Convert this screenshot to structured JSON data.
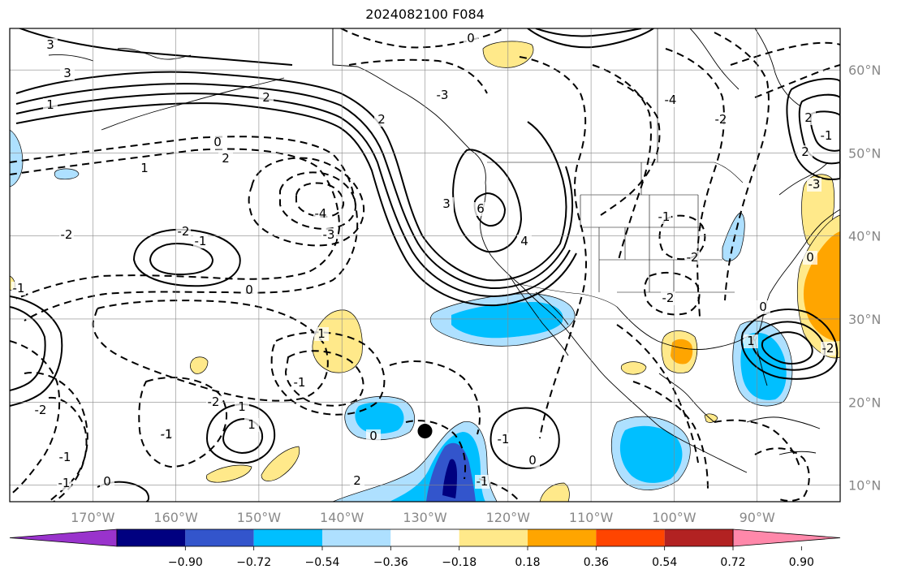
{
  "title": "2024082100 F084",
  "map": {
    "projection": "Plate Carrée",
    "lon_range": [
      -180,
      -80
    ],
    "lat_range": [
      8,
      65
    ],
    "lon_ticks": [
      "170°W",
      "160°W",
      "150°W",
      "140°W",
      "130°W",
      "120°W",
      "110°W",
      "100°W",
      "90°W"
    ],
    "lat_ticks": [
      "60°N",
      "50°N",
      "40°N",
      "30°N",
      "20°N",
      "10°N"
    ],
    "gridlines": true,
    "storm_marker": {
      "lon": -130,
      "lat": 16.5,
      "color": "#000000"
    },
    "contour_labels": [
      "3",
      "3",
      "1",
      "2",
      "2",
      "0",
      "2",
      "1",
      "0",
      "-2",
      "-1",
      "-2",
      "-4",
      "-3",
      "0",
      "-1",
      "3",
      "6",
      "4",
      "-3",
      "-4",
      "-2",
      "-1",
      "-2",
      "-2",
      "0",
      "2",
      "2",
      "0",
      "-1",
      "-2",
      "1",
      "-1",
      "0",
      "1",
      "1",
      "2",
      "-1",
      "-1",
      "0",
      "-1",
      "0",
      "-1",
      "-2",
      "-1",
      "-2",
      "-1",
      "-3",
      "1"
    ]
  },
  "colorbar": {
    "colors": [
      "#9933cc",
      "#000080",
      "#3355cc",
      "#00bfff",
      "#aee0ff",
      "#ffffff",
      "#ffe98a",
      "#ffa500",
      "#ff4500",
      "#b22222",
      "#ff88aa"
    ],
    "tick_labels": [
      "−0.90",
      "−0.72",
      "−0.54",
      "−0.36",
      "−0.18",
      "0.18",
      "0.36",
      "0.54",
      "0.72",
      "0.90"
    ],
    "extend": "both"
  }
}
